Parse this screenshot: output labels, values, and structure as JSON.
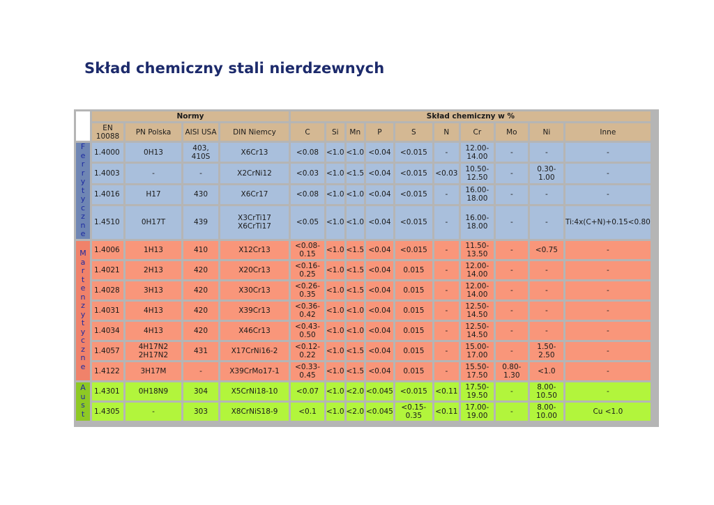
{
  "title": "Skład chemiczny stali nierdzewnych",
  "table": {
    "group_headers": {
      "norms": "Normy",
      "composition": "Skład chemiczny w %"
    },
    "columns": [
      "EN 10088",
      "PN Polska",
      "AISI USA",
      "DIN Niemcy",
      "C",
      "Si",
      "Mn",
      "P",
      "S",
      "N",
      "Cr",
      "Mo",
      "Ni",
      "Inne"
    ],
    "groups": [
      {
        "name": "Ferrytyczne",
        "letters": [
          "F",
          "e",
          "r",
          "r",
          "y",
          "t",
          "y",
          "c",
          "z",
          "n",
          "e"
        ],
        "color": "#a9bfdc",
        "rows": [
          [
            "1.4000",
            "0H13",
            "403, 410S",
            "X6Cr13",
            "<0.08",
            "<1.0",
            "<1.0",
            "<0.04",
            "<0.015",
            "-",
            "12.00-14.00",
            "-",
            "-",
            "-"
          ],
          [
            "1.4003",
            "-",
            "-",
            "X2CrNi12",
            "<0.03",
            "<1.0",
            "<1.5",
            "<0.04",
            "<0.015",
            "<0.03",
            "10.50-12.50",
            "-",
            "0.30-1.00",
            "-"
          ],
          [
            "1.4016",
            "H17",
            "430",
            "X6Cr17",
            "<0.08",
            "<1.0",
            "<1.0",
            "<0.04",
            "<0.015",
            "-",
            "16.00-18.00",
            "-",
            "-",
            "-"
          ],
          [
            "1.4510",
            "0H17T",
            "439",
            "X3CrTi17 X6CrTi17",
            "<0.05",
            "<1.0",
            "<1.0",
            "<0.04",
            "<0.015",
            "-",
            "16.00-18.00",
            "-",
            "-",
            "Ti:4x(C+N)+0.15<0.80"
          ]
        ]
      },
      {
        "name": "Martenzytyczne",
        "letters": [
          "M",
          "a",
          "r",
          "t",
          "e",
          "n",
          "z",
          "y",
          "t",
          "y",
          "c",
          "z",
          "n",
          "e"
        ],
        "color": "#f9967a",
        "rows": [
          [
            "1.4006",
            "1H13",
            "410",
            "X12Cr13",
            "<0.08-0.15",
            "<1.0",
            "<1.5",
            "<0.04",
            "<0.015",
            "-",
            "11.50-13.50",
            "-",
            "<0.75",
            "-"
          ],
          [
            "1.4021",
            "2H13",
            "420",
            "X20Cr13",
            "<0.16-0.25",
            "<1.0",
            "<1.5",
            "<0.04",
            "0.015",
            "-",
            "12.00-14.00",
            "-",
            "-",
            "-"
          ],
          [
            "1.4028",
            "3H13",
            "420",
            "X30Cr13",
            "<0.26-0.35",
            "<1.0",
            "<1.5",
            "<0.04",
            "0.015",
            "-",
            "12.00-14.00",
            "-",
            "-",
            "-"
          ],
          [
            "1.4031",
            "4H13",
            "420",
            "X39Cr13",
            "<0.36-0.42",
            "<1.0",
            "<1.0",
            "<0.04",
            "0.015",
            "-",
            "12.50-14.50",
            "-",
            "-",
            "-"
          ],
          [
            "1.4034",
            "4H13",
            "420",
            "X46Cr13",
            "<0.43-0.50",
            "<1.0",
            "<1.0",
            "<0.04",
            "0.015",
            "-",
            "12.50-14.50",
            "-",
            "-",
            "-"
          ],
          [
            "1.4057",
            "4H17N2 2H17N2",
            "431",
            "X17CrNi16-2",
            "<0.12-0.22",
            "<1.0",
            "<1.5",
            "<0.04",
            "0.015",
            "-",
            "15.00-17.00",
            "-",
            "1.50-2.50",
            "-"
          ],
          [
            "1.4122",
            "3H17M",
            "-",
            "X39CrMo17-1",
            "<0.33-0.45",
            "<1.0",
            "<1.5",
            "<0.04",
            "0.015",
            "-",
            "15.50-17.50",
            "0.80-1.30",
            "<1.0",
            "-"
          ]
        ]
      },
      {
        "name": "Aust",
        "letters": [
          "A",
          "u",
          "s",
          "t"
        ],
        "color": "#b2f53c",
        "rows": [
          [
            "1.4301",
            "0H18N9",
            "304",
            "X5CrNi18-10",
            "<0.07",
            "<1.0",
            "<2.0",
            "<0.045",
            "<0.015",
            "<0.11",
            "17.50-19.50",
            "-",
            "8.00-10.50",
            "-"
          ],
          [
            "1.4305",
            "-",
            "303",
            "X8CrNiS18-9",
            "<0.1",
            "<1.0",
            "<2.0",
            "<0.045",
            "<0.15-0.35",
            "<0.11",
            "17.00-19.00",
            "-",
            "8.00-10.00",
            "Cu <1.0"
          ]
        ]
      }
    ]
  }
}
